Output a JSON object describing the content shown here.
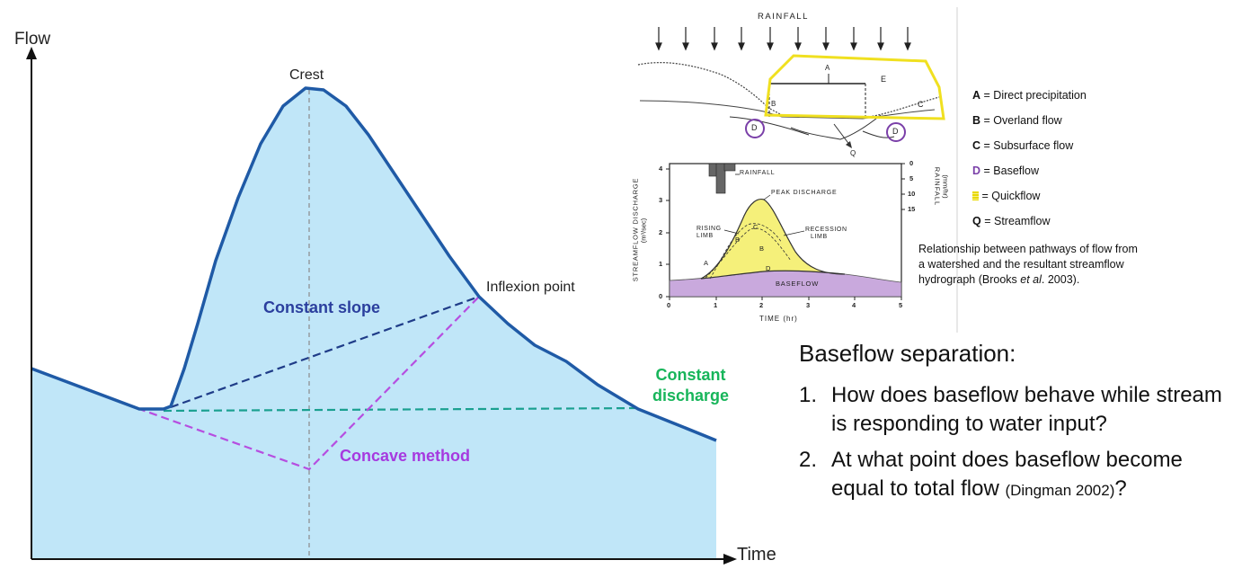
{
  "hydrograph": {
    "y_axis_label": "Flow",
    "x_axis_label": "Time",
    "crest_label": "Crest",
    "inflexion_label": "Inflexion point",
    "constant_slope_label": "Constant slope",
    "constant_discharge_label_1": "Constant",
    "constant_discharge_label_2": "discharge",
    "concave_label": "Concave method",
    "colors": {
      "fill": "#c0e6f8",
      "hydrograph_line": "#1f5aa6",
      "constant_slope": "#1f3c88",
      "constant_discharge": "#1aa090",
      "concave": "#b64ee0",
      "constant_slope_text": "#2b3f9e",
      "constant_discharge_text": "#17b55a",
      "concave_text": "#a63adf"
    }
  },
  "watershed_figure": {
    "rainfall_title": "RAINFALL",
    "markers": {
      "a": "A",
      "b": "B",
      "c": "C",
      "d": "D",
      "e": "E",
      "q": "Q"
    },
    "colors": {
      "quickflow": "#f0e020",
      "baseflow_circle": "#7a3fa8",
      "baseflow_area": "#c9a9dd",
      "hydrograph_fill": "#f5f07a"
    }
  },
  "inset_chart": {
    "ylabel": "STREAMFLOW DISCHARGE",
    "ylabel_units": "(m³/sec)",
    "xlabel": "TIME (hr)",
    "right_label": "RAINFALL",
    "right_units": "(mm/hr)",
    "x_ticks": [
      "0",
      "1",
      "2",
      "3",
      "4",
      "5"
    ],
    "y_ticks": [
      "0",
      "1",
      "2",
      "3",
      "4"
    ],
    "right_ticks": [
      "0",
      "5",
      "10",
      "15"
    ],
    "rainfall_label": "RAINFALL",
    "peak_label": "PEAK DISCHARGE",
    "rising_label": "RISING",
    "rising_label_2": "LIMB",
    "recession_label": "RECESSION",
    "recession_label_2": "LIMB",
    "baseflow_label": "BASEFLOW",
    "curve_letters": {
      "a": "A",
      "b": "B",
      "c": "C",
      "d": "D"
    }
  },
  "legend": [
    {
      "key": "A",
      "text": "= Direct precipitation",
      "color": "#111111"
    },
    {
      "key": "B",
      "text": "= Overland flow",
      "color": "#111111"
    },
    {
      "key": "C",
      "text": "= Subsurface flow",
      "color": "#111111"
    },
    {
      "key": "D",
      "text": "= Baseflow",
      "color": "#7a3fa8"
    },
    {
      "key": "",
      "text": "= Quickflow",
      "color": "#e8d800"
    },
    {
      "key": "Q",
      "text": "= Streamflow",
      "color": "#111111"
    }
  ],
  "caption": {
    "text_1": "Relationship between pathways of flow from a watershed and the resultant streamflow hydrograph (Brooks ",
    "etal": "et al",
    "text_2": ". 2003)."
  },
  "baseflow_separation": {
    "title": "Baseflow separation:",
    "questions": [
      {
        "num": "1.",
        "text": "How does baseflow behave while stream is responding to water input?"
      },
      {
        "num": "2.",
        "text": "At what point does baseflow become equal to total flow ",
        "cite": "(Dingman 2002)",
        "end": "?"
      }
    ]
  }
}
